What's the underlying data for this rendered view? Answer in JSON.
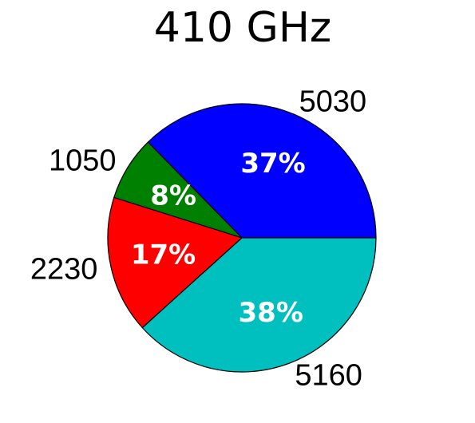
{
  "chart_data": {
    "type": "pie",
    "title": "410 GHz",
    "slices": [
      {
        "label": "5030",
        "value": 5030,
        "percent_label": "37%",
        "color": "#0000ff"
      },
      {
        "label": "1050",
        "value": 1050,
        "percent_label": "8%",
        "color": "#008000"
      },
      {
        "label": "2230",
        "value": 2230,
        "percent_label": "17%",
        "color": "#ff0000"
      },
      {
        "label": "5160",
        "value": 5160,
        "percent_label": "38%",
        "color": "#00bfbf"
      }
    ],
    "start_angle_deg": 0,
    "direction": "counterclockwise",
    "edge_color": "#000000"
  }
}
